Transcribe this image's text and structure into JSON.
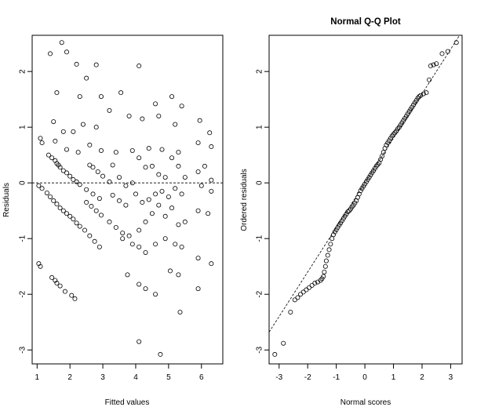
{
  "chart_data": [
    {
      "type": "scatter",
      "title": "",
      "xlabel": "Fitted values",
      "ylabel": "Residuals",
      "xlim": [
        0.85,
        6.65
      ],
      "ylim": [
        -3.25,
        2.65
      ],
      "x_ticks": [
        1,
        2,
        3,
        4,
        5,
        6
      ],
      "y_ticks": [
        -3,
        -2,
        -1,
        0,
        1,
        2
      ],
      "reference_line": {
        "type": "horizontal",
        "y": 0,
        "style": "dashed"
      },
      "grid": false,
      "points": [
        [
          1.4,
          2.32
        ],
        [
          1.75,
          2.52
        ],
        [
          1.9,
          2.35
        ],
        [
          2.2,
          2.13
        ],
        [
          2.5,
          1.88
        ],
        [
          2.8,
          2.12
        ],
        [
          4.1,
          2.1
        ],
        [
          1.6,
          1.62
        ],
        [
          2.3,
          1.55
        ],
        [
          2.95,
          1.55
        ],
        [
          3.55,
          1.62
        ],
        [
          4.6,
          1.42
        ],
        [
          5.1,
          1.55
        ],
        [
          5.4,
          1.38
        ],
        [
          1.1,
          0.8
        ],
        [
          1.5,
          1.1
        ],
        [
          1.8,
          0.92
        ],
        [
          2.1,
          0.92
        ],
        [
          2.4,
          1.05
        ],
        [
          2.8,
          1.0
        ],
        [
          3.2,
          1.3
        ],
        [
          3.8,
          1.2
        ],
        [
          4.2,
          1.15
        ],
        [
          4.7,
          1.2
        ],
        [
          5.2,
          1.05
        ],
        [
          5.95,
          1.12
        ],
        [
          6.25,
          0.9
        ],
        [
          1.15,
          0.72
        ],
        [
          1.55,
          0.75
        ],
        [
          1.9,
          0.6
        ],
        [
          2.25,
          0.55
        ],
        [
          2.6,
          0.68
        ],
        [
          2.95,
          0.58
        ],
        [
          3.4,
          0.55
        ],
        [
          3.9,
          0.58
        ],
        [
          4.4,
          0.62
        ],
        [
          4.8,
          0.6
        ],
        [
          5.3,
          0.55
        ],
        [
          5.9,
          0.72
        ],
        [
          6.3,
          0.65
        ],
        [
          1.35,
          0.5
        ],
        [
          1.45,
          0.45
        ],
        [
          1.55,
          0.4
        ],
        [
          1.6,
          0.35
        ],
        [
          1.65,
          0.32
        ],
        [
          1.7,
          0.28
        ],
        [
          1.8,
          0.22
        ],
        [
          1.9,
          0.18
        ],
        [
          2.0,
          0.12
        ],
        [
          2.1,
          0.06
        ],
        [
          2.2,
          0.02
        ],
        [
          2.3,
          -0.03
        ],
        [
          2.5,
          -0.12
        ],
        [
          2.7,
          -0.2
        ],
        [
          2.9,
          -0.28
        ],
        [
          2.6,
          0.32
        ],
        [
          2.7,
          0.28
        ],
        [
          2.85,
          0.2
        ],
        [
          3.0,
          0.12
        ],
        [
          3.2,
          0.02
        ],
        [
          3.3,
          0.32
        ],
        [
          3.5,
          0.1
        ],
        [
          3.7,
          -0.05
        ],
        [
          3.9,
          0.0
        ],
        [
          4.1,
          0.45
        ],
        [
          4.3,
          0.28
        ],
        [
          4.5,
          0.3
        ],
        [
          4.7,
          0.15
        ],
        [
          4.9,
          0.1
        ],
        [
          5.1,
          0.45
        ],
        [
          5.3,
          0.3
        ],
        [
          5.5,
          0.1
        ],
        [
          5.9,
          0.2
        ],
        [
          6.1,
          0.3
        ],
        [
          6.3,
          0.05
        ],
        [
          1.05,
          -0.05
        ],
        [
          1.15,
          -0.1
        ],
        [
          1.3,
          -0.18
        ],
        [
          1.4,
          -0.25
        ],
        [
          1.5,
          -0.32
        ],
        [
          1.6,
          -0.38
        ],
        [
          1.7,
          -0.45
        ],
        [
          1.8,
          -0.5
        ],
        [
          1.9,
          -0.55
        ],
        [
          2.0,
          -0.6
        ],
        [
          2.1,
          -0.65
        ],
        [
          2.2,
          -0.72
        ],
        [
          2.3,
          -0.78
        ],
        [
          2.45,
          -0.85
        ],
        [
          2.6,
          -0.95
        ],
        [
          2.75,
          -1.05
        ],
        [
          2.9,
          -1.15
        ],
        [
          2.5,
          -0.35
        ],
        [
          2.65,
          -0.42
        ],
        [
          2.8,
          -0.5
        ],
        [
          2.95,
          -0.58
        ],
        [
          3.2,
          -0.7
        ],
        [
          3.4,
          -0.8
        ],
        [
          3.6,
          -0.9
        ],
        [
          3.8,
          -0.95
        ],
        [
          4.1,
          -0.85
        ],
        [
          4.3,
          -0.7
        ],
        [
          4.5,
          -0.55
        ],
        [
          4.7,
          -0.4
        ],
        [
          4.9,
          -0.6
        ],
        [
          5.1,
          -0.45
        ],
        [
          5.3,
          -0.75
        ],
        [
          5.5,
          -0.7
        ],
        [
          5.9,
          -0.5
        ],
        [
          6.2,
          -0.55
        ],
        [
          3.3,
          -0.22
        ],
        [
          3.5,
          -0.32
        ],
        [
          3.7,
          -0.4
        ],
        [
          4.0,
          -0.2
        ],
        [
          4.2,
          -0.35
        ],
        [
          4.4,
          -0.3
        ],
        [
          4.6,
          -0.2
        ],
        [
          4.8,
          -0.15
        ],
        [
          5.0,
          -0.25
        ],
        [
          5.2,
          -0.1
        ],
        [
          5.4,
          -0.2
        ],
        [
          6.0,
          -0.05
        ],
        [
          6.3,
          -0.15
        ],
        [
          3.6,
          -1.0
        ],
        [
          3.9,
          -1.1
        ],
        [
          4.1,
          -1.15
        ],
        [
          4.3,
          -1.25
        ],
        [
          4.6,
          -1.1
        ],
        [
          4.9,
          -1.0
        ],
        [
          5.2,
          -1.1
        ],
        [
          5.4,
          -1.15
        ],
        [
          5.9,
          -1.35
        ],
        [
          6.3,
          -1.45
        ],
        [
          1.05,
          -1.45
        ],
        [
          1.1,
          -1.5
        ],
        [
          1.45,
          -1.7
        ],
        [
          1.55,
          -1.75
        ],
        [
          1.6,
          -1.8
        ],
        [
          1.7,
          -1.85
        ],
        [
          1.85,
          -1.95
        ],
        [
          2.05,
          -2.02
        ],
        [
          2.15,
          -2.08
        ],
        [
          3.75,
          -1.65
        ],
        [
          4.1,
          -1.82
        ],
        [
          4.3,
          -1.9
        ],
        [
          4.6,
          -2.0
        ],
        [
          5.05,
          -1.58
        ],
        [
          5.3,
          -1.65
        ],
        [
          5.9,
          -1.9
        ],
        [
          5.35,
          -2.32
        ],
        [
          4.1,
          -2.85
        ],
        [
          4.75,
          -3.08
        ]
      ]
    },
    {
      "type": "scatter",
      "title": "Normal Q-Q Plot",
      "xlabel": "Normal scores",
      "ylabel": "Ordered residuals",
      "xlim": [
        -3.35,
        3.4
      ],
      "ylim": [
        -3.25,
        2.65
      ],
      "x_ticks": [
        -3,
        -2,
        -1,
        0,
        1,
        2,
        3
      ],
      "y_ticks": [
        -3,
        -2,
        -1,
        0,
        1,
        2
      ],
      "reference_line": {
        "type": "qqline",
        "slope": 0.8,
        "intercept": 0.0,
        "style": "dashed"
      },
      "grid": false,
      "points": [
        [
          -3.15,
          -3.08
        ],
        [
          -2.85,
          -2.88
        ],
        [
          -2.6,
          -2.32
        ],
        [
          -2.45,
          -2.1
        ],
        [
          -2.35,
          -2.06
        ],
        [
          -2.25,
          -2.0
        ],
        [
          -2.15,
          -1.96
        ],
        [
          -2.05,
          -1.92
        ],
        [
          -1.95,
          -1.88
        ],
        [
          -1.85,
          -1.84
        ],
        [
          -1.75,
          -1.8
        ],
        [
          -1.65,
          -1.78
        ],
        [
          -1.55,
          -1.75
        ],
        [
          -1.5,
          -1.72
        ],
        [
          -1.45,
          -1.68
        ],
        [
          -1.42,
          -1.6
        ],
        [
          -1.38,
          -1.5
        ],
        [
          -1.35,
          -1.4
        ],
        [
          -1.3,
          -1.3
        ],
        [
          -1.25,
          -1.2
        ],
        [
          -1.2,
          -1.1
        ],
        [
          -1.15,
          -1.0
        ],
        [
          -1.1,
          -0.93
        ],
        [
          -1.05,
          -0.88
        ],
        [
          -1.0,
          -0.84
        ],
        [
          -0.95,
          -0.8
        ],
        [
          -0.9,
          -0.76
        ],
        [
          -0.85,
          -0.72
        ],
        [
          -0.8,
          -0.68
        ],
        [
          -0.75,
          -0.64
        ],
        [
          -0.7,
          -0.6
        ],
        [
          -0.65,
          -0.56
        ],
        [
          -0.6,
          -0.52
        ],
        [
          -0.55,
          -0.5
        ],
        [
          -0.5,
          -0.47
        ],
        [
          -0.45,
          -0.43
        ],
        [
          -0.4,
          -0.4
        ],
        [
          -0.35,
          -0.36
        ],
        [
          -0.3,
          -0.32
        ],
        [
          -0.25,
          -0.26
        ],
        [
          -0.2,
          -0.2
        ],
        [
          -0.15,
          -0.14
        ],
        [
          -0.1,
          -0.1
        ],
        [
          -0.05,
          -0.06
        ],
        [
          0.0,
          -0.02
        ],
        [
          0.05,
          0.02
        ],
        [
          0.1,
          0.06
        ],
        [
          0.15,
          0.1
        ],
        [
          0.2,
          0.14
        ],
        [
          0.25,
          0.18
        ],
        [
          0.3,
          0.22
        ],
        [
          0.35,
          0.26
        ],
        [
          0.4,
          0.3
        ],
        [
          0.45,
          0.33
        ],
        [
          0.5,
          0.36
        ],
        [
          0.55,
          0.42
        ],
        [
          0.6,
          0.48
        ],
        [
          0.65,
          0.55
        ],
        [
          0.7,
          0.62
        ],
        [
          0.75,
          0.68
        ],
        [
          0.8,
          0.72
        ],
        [
          0.85,
          0.76
        ],
        [
          0.9,
          0.8
        ],
        [
          0.95,
          0.84
        ],
        [
          1.0,
          0.87
        ],
        [
          1.05,
          0.9
        ],
        [
          1.1,
          0.93
        ],
        [
          1.15,
          0.97
        ],
        [
          1.2,
          1.0
        ],
        [
          1.25,
          1.04
        ],
        [
          1.3,
          1.08
        ],
        [
          1.35,
          1.12
        ],
        [
          1.4,
          1.16
        ],
        [
          1.45,
          1.2
        ],
        [
          1.5,
          1.24
        ],
        [
          1.55,
          1.28
        ],
        [
          1.6,
          1.32
        ],
        [
          1.65,
          1.36
        ],
        [
          1.7,
          1.4
        ],
        [
          1.75,
          1.44
        ],
        [
          1.8,
          1.48
        ],
        [
          1.85,
          1.52
        ],
        [
          1.9,
          1.55
        ],
        [
          1.95,
          1.57
        ],
        [
          2.05,
          1.6
        ],
        [
          2.15,
          1.62
        ],
        [
          2.25,
          1.85
        ],
        [
          2.3,
          2.1
        ],
        [
          2.4,
          2.12
        ],
        [
          2.5,
          2.14
        ],
        [
          2.7,
          2.32
        ],
        [
          2.9,
          2.36
        ],
        [
          3.2,
          2.52
        ]
      ]
    }
  ]
}
